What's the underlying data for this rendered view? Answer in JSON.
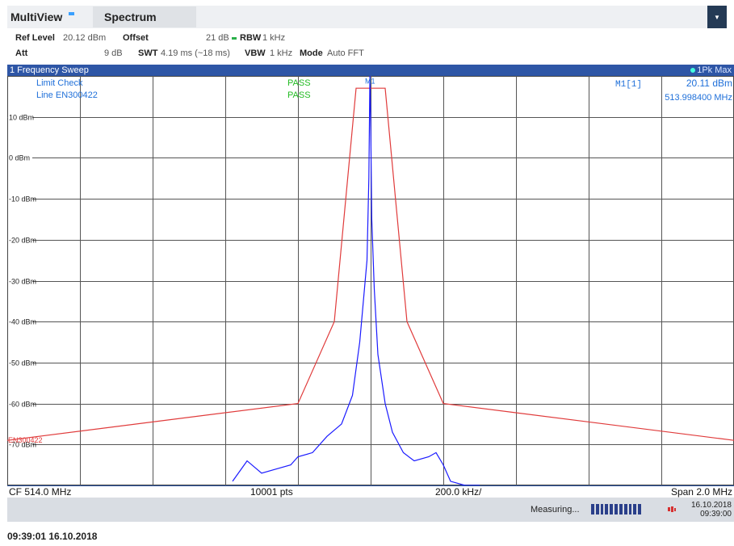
{
  "header": {
    "multiview_label": "MultiView",
    "spectrum_tab_label": "Spectrum",
    "menu_icon": "dropdown-arrow-icon"
  },
  "settings": {
    "ref_level_label": "Ref Level",
    "ref_level_value": "20.12 dBm",
    "offset_label": "Offset",
    "offset_value": "21 dB",
    "rbw_label": "RBW",
    "rbw_value": "1 kHz",
    "att_label": "Att",
    "att_value": "9 dB",
    "swt_label": "SWT",
    "swt_value": "4.19 ms (~18 ms)",
    "vbw_label": "VBW",
    "vbw_value": "1 kHz",
    "mode_label": "Mode",
    "mode_value": "Auto FFT"
  },
  "window": {
    "title": "1 Frequency Sweep",
    "trace_mode": "1Pk Max"
  },
  "limit": {
    "check_label": "Limit Check",
    "line_label": "Line EN300422",
    "check_result": "PASS",
    "line_result": "PASS",
    "line_name": "EN300422"
  },
  "marker": {
    "name": "M1[1]",
    "level": "20.11 dBm",
    "freq": "513.998400 MHz",
    "tag": "M1"
  },
  "footer": {
    "cf": "CF 514.0 MHz",
    "points": "10001 pts",
    "div": "200.0 kHz/",
    "span": "Span 2.0 MHz"
  },
  "status": {
    "measuring": "Measuring...",
    "date": "16.10.2018",
    "time": "09:39:00"
  },
  "timestamp": "09:39:01 16.10.2018",
  "colors": {
    "trace": "#1a1aff",
    "limit": "#e03b3b",
    "header_bar": "#2e56a6",
    "marker_text": "#1e6fd9",
    "pass": "#22bb22"
  },
  "chart_data": {
    "type": "line",
    "ylim": [
      -80,
      20
    ],
    "y_ticks": [
      "10 dBm",
      "0 dBm",
      "-10 dBm",
      "-20 dBm",
      "-30 dBm",
      "-40 dBm",
      "-50 dBm",
      "-60 dBm",
      "-70 dBm"
    ],
    "y_tick_values": [
      10,
      0,
      -10,
      -20,
      -30,
      -40,
      -50,
      -60,
      -70
    ],
    "xlim": [
      513.0,
      515.0
    ],
    "x_unit": "MHz",
    "grid": true,
    "series": [
      {
        "name": "EN300422",
        "x": [
          513.0,
          513.8,
          513.9,
          513.96,
          514.04,
          514.1,
          514.2,
          515.0
        ],
        "y": [
          -69,
          -60,
          -40,
          17,
          17,
          -40,
          -60,
          -69
        ]
      },
      {
        "name": "1Pk Max",
        "x": [
          513.62,
          513.66,
          513.7,
          513.74,
          513.78,
          513.8,
          513.84,
          513.88,
          513.92,
          513.95,
          513.97,
          513.99,
          513.995,
          513.998,
          514.0,
          514.003,
          514.01,
          514.02,
          514.04,
          514.06,
          514.09,
          514.12,
          514.16,
          514.18,
          514.2,
          514.22,
          514.26,
          514.3
        ],
        "y": [
          -79,
          -74,
          -77,
          -76,
          -75,
          -73,
          -72,
          -68,
          -65,
          -58,
          -45,
          -25,
          -5,
          20,
          10,
          -15,
          -32,
          -48,
          -60,
          -67,
          -72,
          -74,
          -73,
          -72,
          -75,
          -79,
          -80,
          -80
        ]
      }
    ],
    "marker": {
      "x": 513.9984,
      "y": 20.11
    }
  }
}
